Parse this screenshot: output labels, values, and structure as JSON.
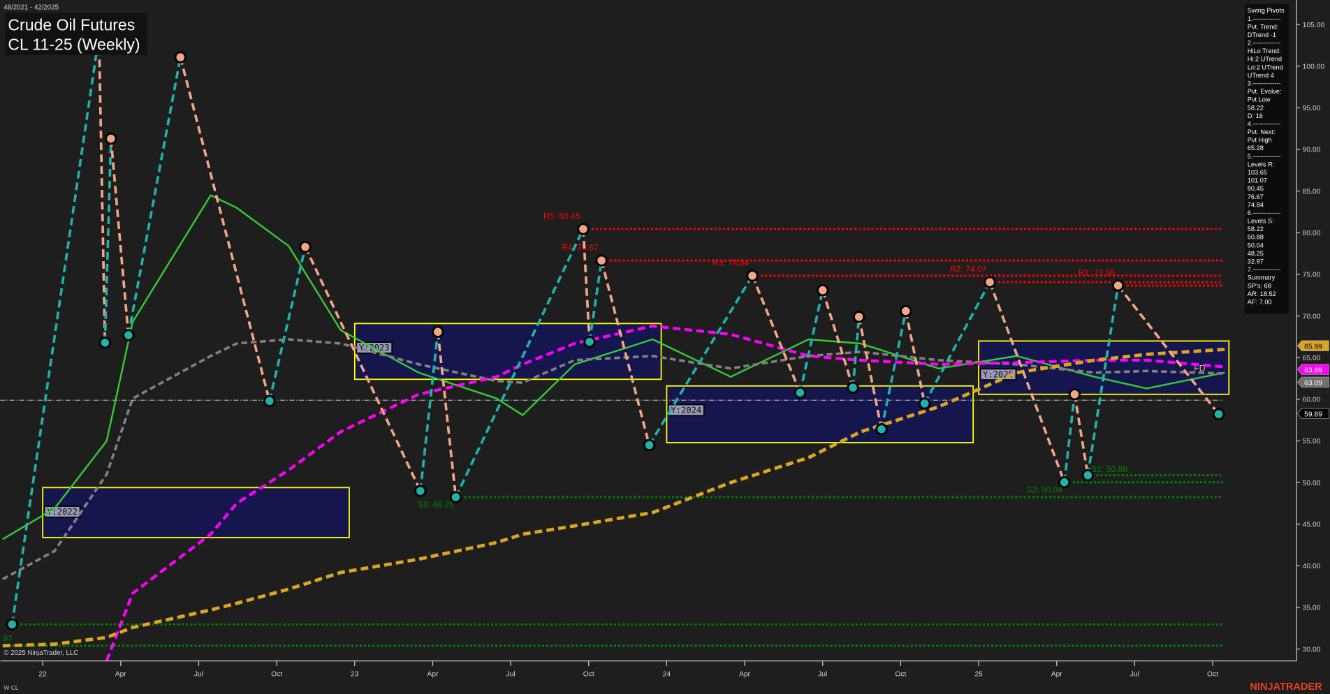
{
  "header": {
    "date_range": "48/2021 - 42/2025",
    "title_line1": "Crude Oil Futures",
    "title_line2": "CL 11-25 (Weekly)",
    "copyright": "© 2025 NinjaTrader, LLC",
    "instrument_tag": "W CL",
    "brand": "NINJATRADER"
  },
  "info_panel": {
    "lines": [
      "Swing Pivots",
      "1.-------------",
      "Pvt. Trend:",
      "DTrend -1",
      "2.-------------",
      "HiLo Trend:",
      "Hi:2 UTrend",
      "Lo:2 UTrend",
      "UTrend 4",
      "3.-------------",
      "Pvt. Evolve:",
      "Pvt Low",
      "58.22",
      "D: 16",
      "4.-------------",
      "Pvt. Next:",
      "Pvt High",
      "65.28",
      "5.-------------",
      "Levels R:",
      "103.65",
      "101.07",
      "80.45",
      "76.67",
      "74.84",
      "6.-------------",
      "Levels S:",
      "58.22",
      "50.88",
      "50.04",
      "48.25",
      "32.97",
      "7.-------------",
      "Summary",
      "SP's: 68",
      "AR: 18.52",
      "AF: 7.00"
    ]
  },
  "colors": {
    "background": "#1e1e1e",
    "pivot_high": "#f4a582",
    "pivot_low": "#20b2aa",
    "resistance": "#ff0000",
    "support": "#008000",
    "fast_ma": "#33cc33",
    "mid_ma": "#808080",
    "slow_ma": "#ff00ff",
    "long_ma": "#daa520",
    "year_box_fill": "#16164f",
    "year_box_stroke": "#ffff00"
  },
  "chart_data": {
    "type": "line",
    "title": "Crude Oil Futures CL 11-25 (Weekly)",
    "ylim": [
      28.5,
      107
    ],
    "y_ticks": [
      30,
      35,
      40,
      45,
      50,
      55,
      60,
      65,
      70,
      75,
      80,
      85,
      90,
      95,
      100,
      105
    ],
    "y_tick_labels": [
      "30.00",
      "35.00",
      "40.00",
      "45.00",
      "50.00",
      "55.00",
      "60.00",
      "65.00",
      "70.00",
      "75.00",
      "80.00",
      "85.00",
      "90.00",
      "95.00",
      "100.00",
      "105.00"
    ],
    "x_ticks": [
      {
        "label": "22",
        "date": "2022-01-01"
      },
      {
        "label": "Apr",
        "date": "2022-04-01"
      },
      {
        "label": "Jul",
        "date": "2022-07-01"
      },
      {
        "label": "Oct",
        "date": "2022-10-01"
      },
      {
        "label": "23",
        "date": "2023-01-01"
      },
      {
        "label": "Apr",
        "date": "2023-04-01"
      },
      {
        "label": "Jul",
        "date": "2023-07-01"
      },
      {
        "label": "Oct",
        "date": "2023-10-01"
      },
      {
        "label": "24",
        "date": "2024-01-01"
      },
      {
        "label": "Apr",
        "date": "2024-04-01"
      },
      {
        "label": "Jul",
        "date": "2024-07-01"
      },
      {
        "label": "Oct",
        "date": "2024-10-01"
      },
      {
        "label": "25",
        "date": "2025-01-01"
      },
      {
        "label": "Apr",
        "date": "2025-04-01"
      },
      {
        "label": "Jul",
        "date": "2025-07-01"
      },
      {
        "label": "Oct",
        "date": "2025-10-01"
      }
    ],
    "grid": false,
    "swing_pivots": [
      {
        "date": "2021-11-26",
        "price": 32.97
      },
      {
        "date": "2022-03-06",
        "price": 103.65
      },
      {
        "date": "2022-03-13",
        "price": 66.8
      },
      {
        "date": "2022-03-20",
        "price": 91.3
      },
      {
        "date": "2022-04-10",
        "price": 67.7
      },
      {
        "date": "2022-06-10",
        "price": 101.07
      },
      {
        "date": "2022-09-23",
        "price": 59.8
      },
      {
        "date": "2022-11-04",
        "price": 78.3
      },
      {
        "date": "2023-03-17",
        "price": 49.0
      },
      {
        "date": "2023-04-07",
        "price": 68.1
      },
      {
        "date": "2023-04-28",
        "price": 48.25
      },
      {
        "date": "2023-09-25",
        "price": 80.45
      },
      {
        "date": "2023-10-02",
        "price": 66.9
      },
      {
        "date": "2023-10-16",
        "price": 76.67
      },
      {
        "date": "2023-12-11",
        "price": 54.5
      },
      {
        "date": "2024-04-10",
        "price": 74.84
      },
      {
        "date": "2024-06-05",
        "price": 60.8
      },
      {
        "date": "2024-07-01",
        "price": 73.1
      },
      {
        "date": "2024-08-06",
        "price": 61.4
      },
      {
        "date": "2024-08-13",
        "price": 69.9
      },
      {
        "date": "2024-09-09",
        "price": 56.4
      },
      {
        "date": "2024-10-07",
        "price": 70.6
      },
      {
        "date": "2024-10-29",
        "price": 59.5
      },
      {
        "date": "2025-01-14",
        "price": 74.07
      },
      {
        "date": "2025-04-10",
        "price": 50.04
      },
      {
        "date": "2025-04-22",
        "price": 60.6
      },
      {
        "date": "2025-05-07",
        "price": 50.88
      },
      {
        "date": "2025-06-12",
        "price": 73.66
      },
      {
        "date": "2025-10-08",
        "price": 58.22
      }
    ],
    "ma_dates": [
      "2021-11",
      "2022-01",
      "2022-03",
      "2022-04",
      "2022-07",
      "2022-08",
      "2022-10",
      "2022-12",
      "2023-03",
      "2023-06",
      "2023-07",
      "2023-09",
      "2023-12",
      "2024-03",
      "2024-06",
      "2024-08",
      "2024-11",
      "2025-02",
      "2025-05",
      "2025-07",
      "2025-10"
    ],
    "series": [
      {
        "key": "fast",
        "style": "solid",
        "values": [
          43.2,
          46.9,
          55.0,
          69.3,
          84.5,
          83.0,
          78.4,
          68.3,
          63.2,
          60.1,
          58.1,
          64.2,
          67.2,
          62.7,
          67.2,
          66.7,
          63.7,
          65.2,
          62.7,
          61.3,
          63.2
        ]
      },
      {
        "key": "mid",
        "style": "dashed",
        "values": [
          38.4,
          41.8,
          51.0,
          60.1,
          65.2,
          66.7,
          67.2,
          66.7,
          64.2,
          62.2,
          62.0,
          64.7,
          65.2,
          63.7,
          65.2,
          65.7,
          64.7,
          64.2,
          63.2,
          63.4,
          63.09
        ]
      },
      {
        "key": "slow",
        "style": "dashed",
        "values": [
          null,
          null,
          28.6,
          36.7,
          43.8,
          47.5,
          51.5,
          56.1,
          60.6,
          62.7,
          64.2,
          66.7,
          68.8,
          67.8,
          65.2,
          64.7,
          64.2,
          64.4,
          64.7,
          64.7,
          63.89
        ]
      },
      {
        "key": "long",
        "style": "dashed",
        "values": [
          30.4,
          30.6,
          31.4,
          32.6,
          34.7,
          35.5,
          37.2,
          39.2,
          40.8,
          42.8,
          43.8,
          44.8,
          46.4,
          50.0,
          53.0,
          56.1,
          59.1,
          63.2,
          64.7,
          65.4,
          65.99
        ]
      }
    ],
    "year_boxes": [
      {
        "label": "Y:2022",
        "start": "2022-01-01",
        "end": "2022-12-25",
        "high": 49.4,
        "low": 43.4
      },
      {
        "label": "Y:2023",
        "start": "2023-01-01",
        "end": "2023-12-25",
        "high": 69.1,
        "low": 62.4
      },
      {
        "label": "Y:2024",
        "start": "2024-01-01",
        "end": "2024-12-25",
        "high": 61.6,
        "low": 54.8
      },
      {
        "label": "Y:2025",
        "start": "2025-01-01",
        "end": "2025-10-20",
        "high": 67.0,
        "low": 60.6
      }
    ],
    "resistance_levels": [
      {
        "label": "R5: 80.45",
        "price": 80.45,
        "start": "2023-09-25"
      },
      {
        "label": "R4: 76.67",
        "price": 76.67,
        "start": "2023-10-16"
      },
      {
        "label": "R3: 74.84",
        "price": 74.84,
        "start": "2024-04-10"
      },
      {
        "label": "R2: 74.07",
        "price": 74.07,
        "start": "2025-01-14"
      },
      {
        "label": "R1: 73.66",
        "price": 73.66,
        "start": "2025-06-12"
      }
    ],
    "support_levels": [
      {
        "label": "S1: 50.88",
        "price": 50.88,
        "start": "2025-05-07"
      },
      {
        "label": "S2: 50.04",
        "price": 50.04,
        "start": "2025-04-10"
      },
      {
        "label": "S3: 48.25",
        "price": 48.25,
        "start": "2023-04-28"
      },
      {
        "label": "97",
        "price": 32.97,
        "start": "2021-11-26"
      },
      {
        "label": "",
        "price": 30.4,
        "start": "2021-11-26"
      }
    ],
    "last_price": 59.89,
    "fd_label": "FD",
    "price_tags": [
      {
        "value": "65.99",
        "price": 65.99,
        "bg": "#daa520",
        "fg": "#000000"
      },
      {
        "value": "63.89",
        "price": 63.89,
        "bg": "#ff00ff",
        "fg": "#ffffff"
      },
      {
        "value": "63.09",
        "price": 63.09,
        "bg": "#707070",
        "fg": "#ffffff"
      },
      {
        "value": "59.89",
        "price": 59.89,
        "bg": "#000000",
        "fg": "#ffffff"
      }
    ]
  }
}
